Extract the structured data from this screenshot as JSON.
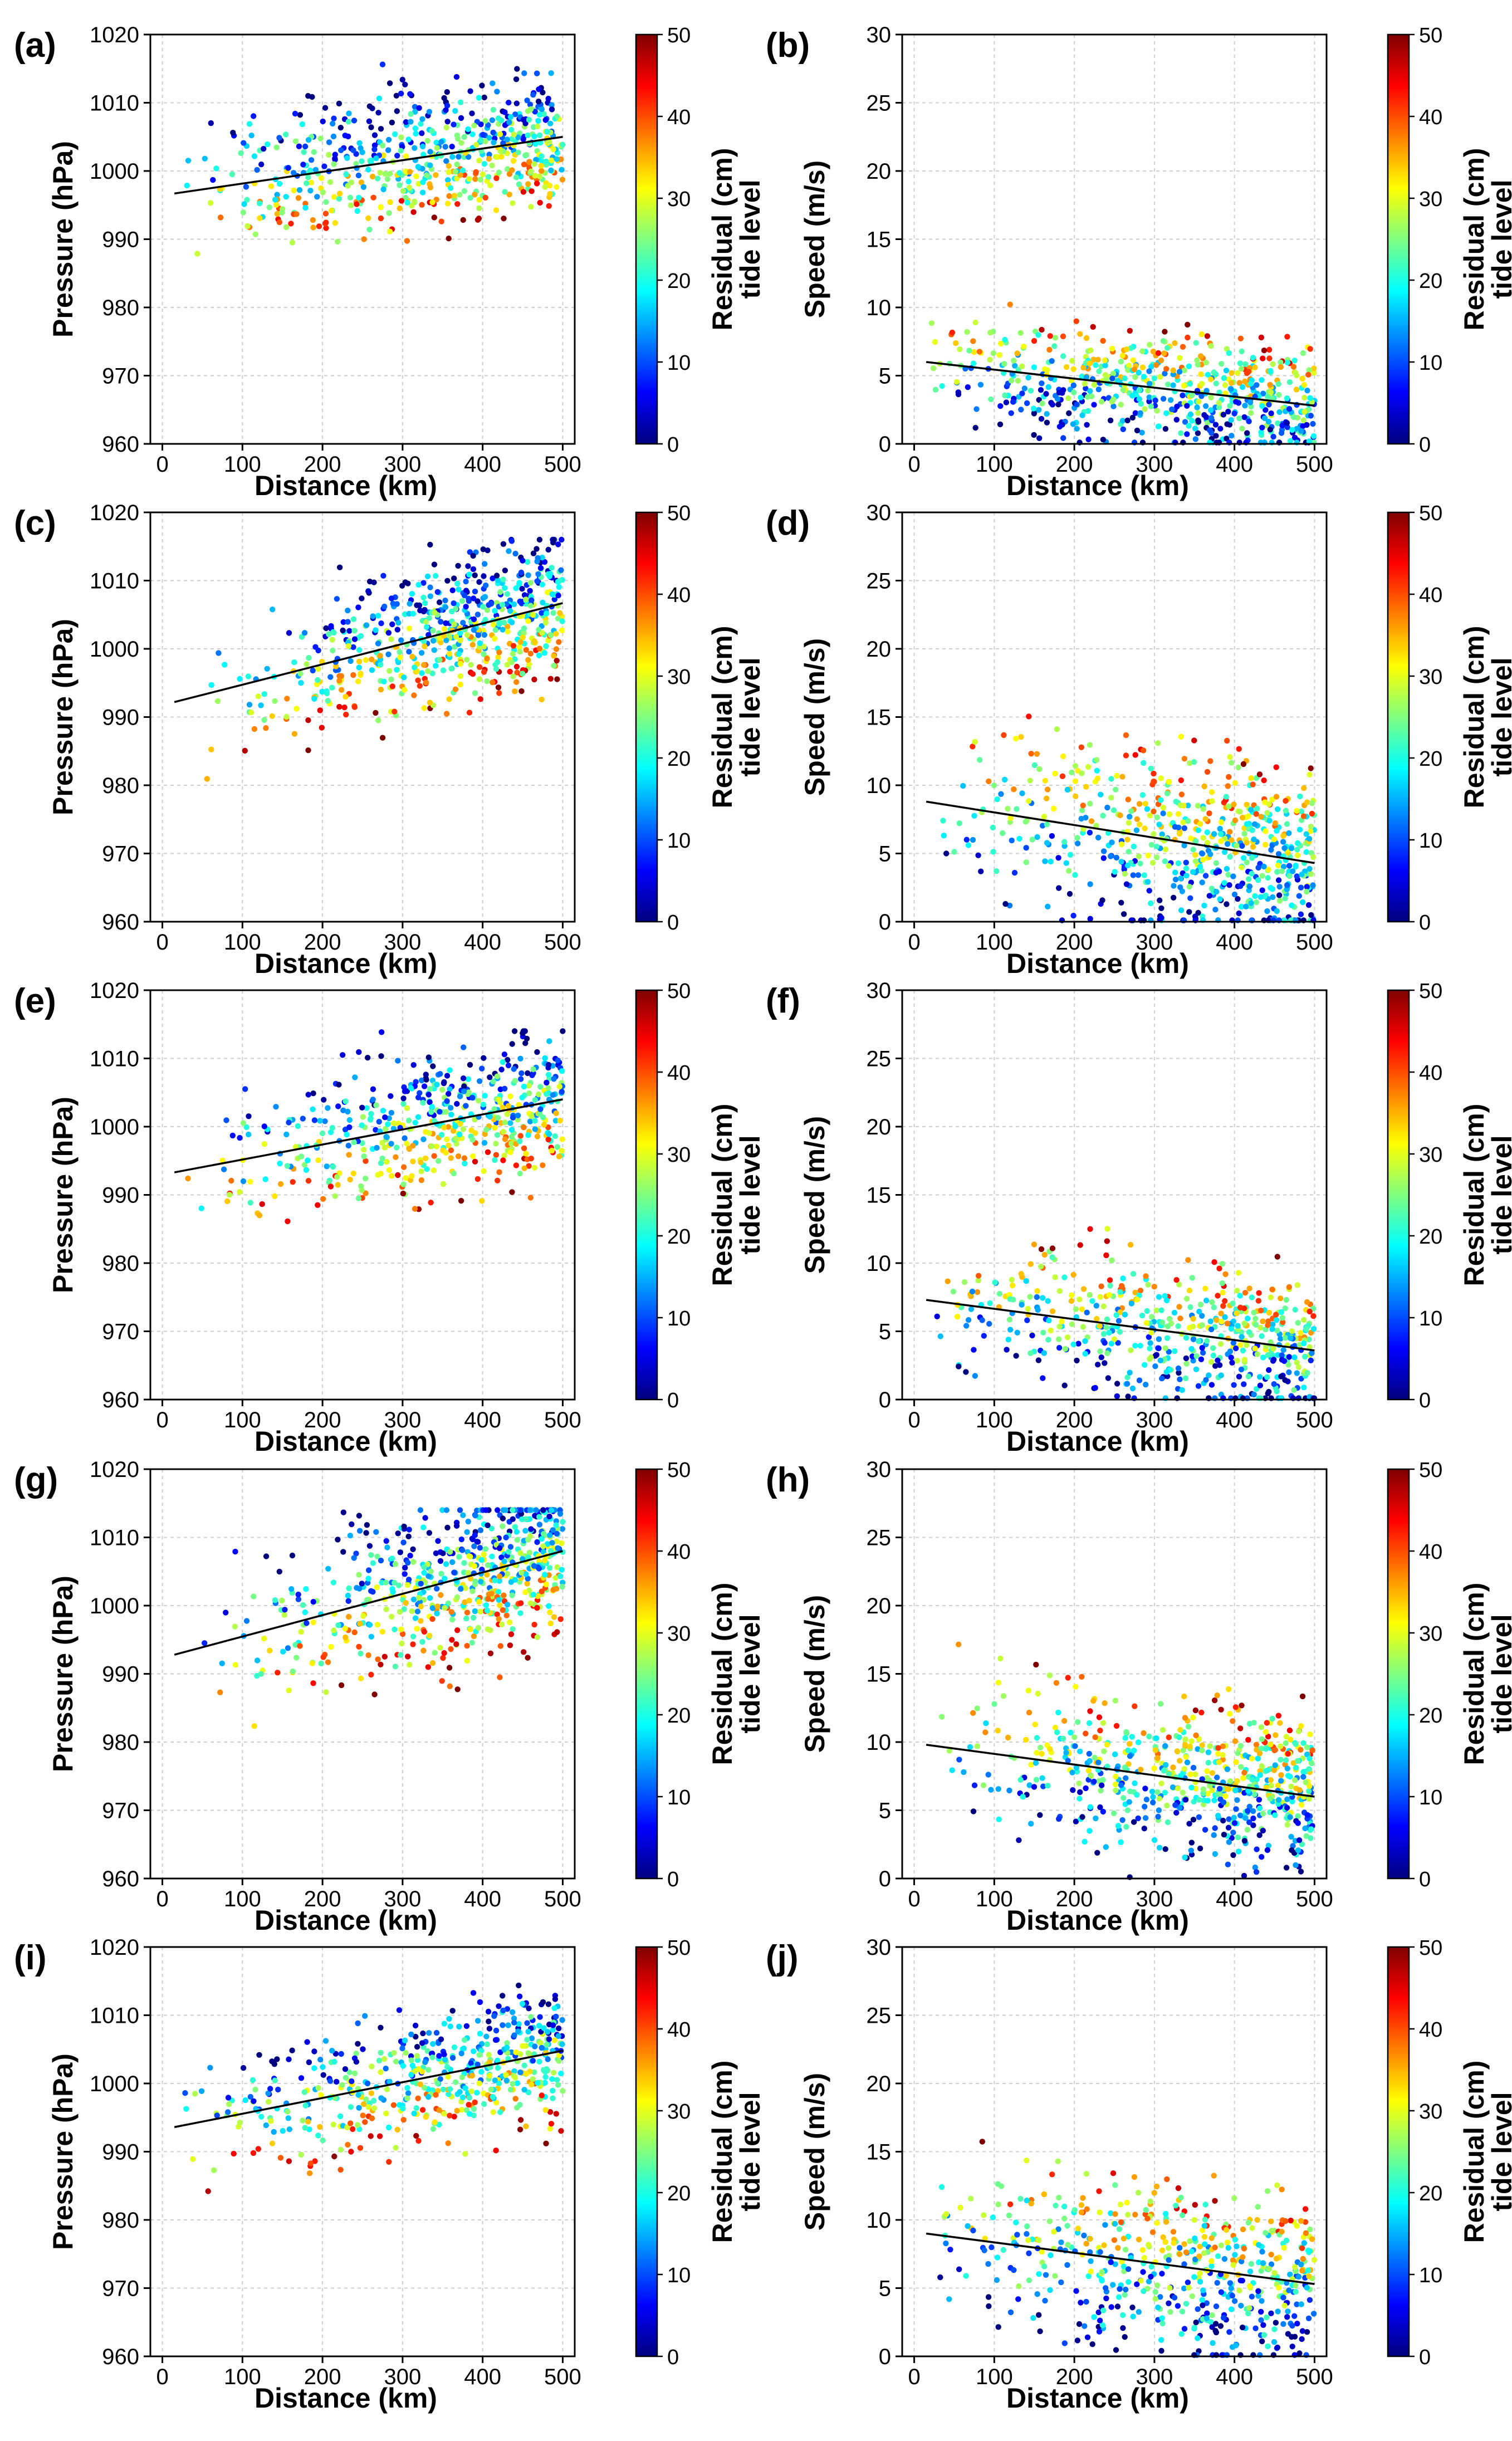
{
  "figure": {
    "colormap": [
      "#00007f",
      "#0000ff",
      "#007fff",
      "#00ffff",
      "#7fff7f",
      "#ffff00",
      "#ff7f00",
      "#ff0000",
      "#7f0000"
    ],
    "line_color": "#000000",
    "grid_color": "#cfcfcf"
  },
  "chart_data": [
    {
      "id": "a",
      "panel_label": "(a)",
      "type": "scatter",
      "xlabel": "Distance (km)",
      "ylabel": "Pressure (hPa)",
      "xlim": [
        -15,
        515
      ],
      "ylim": [
        960,
        1020
      ],
      "xticks": [
        0,
        100,
        200,
        300,
        400,
        500
      ],
      "yticks": [
        960,
        970,
        980,
        990,
        1000,
        1010,
        1020
      ],
      "colorbar": {
        "label": "Residual (cm)",
        "label2": "tide level",
        "range": [
          0,
          50
        ],
        "ticks": [
          0,
          10,
          20,
          30,
          40,
          50
        ]
      },
      "fit_line": {
        "x": [
          15,
          500
        ],
        "y": [
          996.7,
          1005.0
        ]
      },
      "scatter": {
        "n": 620,
        "seed": 11,
        "slope": 0.0171,
        "intercept": 996.4,
        "spread": 6,
        "xmin": 15,
        "xmax": 500,
        "skew": 0.55,
        "ymin": 981,
        "ymax": 1016,
        "curl": 4
      }
    },
    {
      "id": "b",
      "panel_label": "(b)",
      "type": "scatter",
      "xlabel": "Distance (km)",
      "ylabel": "Speed (m/s)",
      "xlim": [
        -15,
        515
      ],
      "ylim": [
        0,
        30
      ],
      "xticks": [
        0,
        100,
        200,
        300,
        400,
        500
      ],
      "yticks": [
        0,
        5,
        10,
        15,
        20,
        25,
        30
      ],
      "colorbar": {
        "label": "Residual (cm)",
        "label2": "tide level",
        "range": [
          0,
          50
        ],
        "ticks": [
          0,
          10,
          20,
          30,
          40,
          50
        ]
      },
      "fit_line": {
        "x": [
          15,
          500
        ],
        "y": [
          6.0,
          2.8
        ]
      },
      "scatter": {
        "n": 640,
        "seed": 12,
        "slope": -0.0066,
        "intercept": 6.1,
        "spread": 2.6,
        "xmin": 15,
        "xmax": 500,
        "skew": 0.6,
        "ymin": 0.1,
        "ymax": 15,
        "curl": 0
      }
    },
    {
      "id": "c",
      "panel_label": "(c)",
      "type": "scatter",
      "xlabel": "Distance (km)",
      "ylabel": "Pressure (hPa)",
      "xlim": [
        -15,
        515
      ],
      "ylim": [
        960,
        1020
      ],
      "xticks": [
        0,
        100,
        200,
        300,
        400,
        500
      ],
      "yticks": [
        960,
        970,
        980,
        990,
        1000,
        1010,
        1020
      ],
      "colorbar": {
        "label": "Residual (cm)",
        "label2": "tide level",
        "range": [
          0,
          50
        ],
        "ticks": [
          0,
          10,
          20,
          30,
          40,
          50
        ]
      },
      "fit_line": {
        "x": [
          15,
          500
        ],
        "y": [
          992.2,
          1006.7
        ]
      },
      "scatter": {
        "n": 640,
        "seed": 13,
        "slope": 0.0299,
        "intercept": 991.8,
        "spread": 6,
        "xmin": 15,
        "xmax": 500,
        "skew": 0.45,
        "ymin": 970,
        "ymax": 1016,
        "curl": 5
      }
    },
    {
      "id": "d",
      "panel_label": "(d)",
      "type": "scatter",
      "xlabel": "Distance (km)",
      "ylabel": "Speed (m/s)",
      "xlim": [
        -15,
        515
      ],
      "ylim": [
        0,
        30
      ],
      "xticks": [
        0,
        100,
        200,
        300,
        400,
        500
      ],
      "yticks": [
        0,
        5,
        10,
        15,
        20,
        25,
        30
      ],
      "colorbar": {
        "label": "Residual (cm)",
        "label2": "tide level",
        "range": [
          0,
          50
        ],
        "ticks": [
          0,
          10,
          20,
          30,
          40,
          50
        ]
      },
      "fit_line": {
        "x": [
          15,
          500
        ],
        "y": [
          8.8,
          4.3
        ]
      },
      "scatter": {
        "n": 640,
        "seed": 14,
        "slope": -0.0093,
        "intercept": 8.9,
        "spread": 4.2,
        "xmin": 15,
        "xmax": 500,
        "skew": 0.5,
        "ymin": 0.1,
        "ymax": 26.3,
        "curl": 0
      }
    },
    {
      "id": "e",
      "panel_label": "(e)",
      "type": "scatter",
      "xlabel": "Distance (km)",
      "ylabel": "Pressure (hPa)",
      "xlim": [
        -15,
        515
      ],
      "ylim": [
        960,
        1020
      ],
      "xticks": [
        0,
        100,
        200,
        300,
        400,
        500
      ],
      "yticks": [
        960,
        970,
        980,
        990,
        1000,
        1010,
        1020
      ],
      "colorbar": {
        "label": "Residual (cm)",
        "label2": "tide level",
        "range": [
          0,
          50
        ],
        "ticks": [
          0,
          10,
          20,
          30,
          40,
          50
        ]
      },
      "fit_line": {
        "x": [
          15,
          500
        ],
        "y": [
          993.3,
          1004.0
        ]
      },
      "scatter": {
        "n": 540,
        "seed": 15,
        "slope": 0.0221,
        "intercept": 993.0,
        "spread": 6,
        "xmin": 15,
        "xmax": 500,
        "skew": 0.5,
        "ymin": 973,
        "ymax": 1014,
        "curl": 4
      }
    },
    {
      "id": "f",
      "panel_label": "(f)",
      "type": "scatter",
      "xlabel": "Distance (km)",
      "ylabel": "Speed (m/s)",
      "xlim": [
        -15,
        515
      ],
      "ylim": [
        0,
        30
      ],
      "xticks": [
        0,
        100,
        200,
        300,
        400,
        500
      ],
      "yticks": [
        0,
        5,
        10,
        15,
        20,
        25,
        30
      ],
      "colorbar": {
        "label": "Residual (cm)",
        "label2": "tide level",
        "range": [
          0,
          50
        ],
        "ticks": [
          0,
          10,
          20,
          30,
          40,
          50
        ]
      },
      "fit_line": {
        "x": [
          15,
          500
        ],
        "y": [
          7.3,
          3.6
        ]
      },
      "scatter": {
        "n": 560,
        "seed": 16,
        "slope": -0.0076,
        "intercept": 7.4,
        "spread": 3.2,
        "xmin": 15,
        "xmax": 500,
        "skew": 0.55,
        "ymin": 0.1,
        "ymax": 19.8,
        "curl": 0
      }
    },
    {
      "id": "g",
      "panel_label": "(g)",
      "type": "scatter",
      "xlabel": "Distance (km)",
      "ylabel": "Pressure (hPa)",
      "xlim": [
        -15,
        515
      ],
      "ylim": [
        960,
        1020
      ],
      "xticks": [
        0,
        100,
        200,
        300,
        400,
        500
      ],
      "yticks": [
        960,
        970,
        980,
        990,
        1000,
        1010,
        1020
      ],
      "colorbar": {
        "label": "Residual (cm)",
        "label2": "tide level",
        "range": [
          0,
          50
        ],
        "ticks": [
          0,
          10,
          20,
          30,
          40,
          50
        ]
      },
      "fit_line": {
        "x": [
          15,
          500
        ],
        "y": [
          992.8,
          1008.0
        ]
      },
      "scatter": {
        "n": 640,
        "seed": 17,
        "slope": 0.0313,
        "intercept": 992.3,
        "spread": 7,
        "xmin": 15,
        "xmax": 500,
        "skew": 0.4,
        "ymin": 978.5,
        "ymax": 1014,
        "curl": 5
      }
    },
    {
      "id": "h",
      "panel_label": "(h)",
      "type": "scatter",
      "xlabel": "Distance (km)",
      "ylabel": "Speed (m/s)",
      "xlim": [
        -15,
        515
      ],
      "ylim": [
        0,
        30
      ],
      "xticks": [
        0,
        100,
        200,
        300,
        400,
        500
      ],
      "yticks": [
        0,
        5,
        10,
        15,
        20,
        25,
        30
      ],
      "colorbar": {
        "label": "Residual (cm)",
        "label2": "tide level",
        "range": [
          0,
          50
        ],
        "ticks": [
          0,
          10,
          20,
          30,
          40,
          50
        ]
      },
      "fit_line": {
        "x": [
          15,
          500
        ],
        "y": [
          9.8,
          6.0
        ]
      },
      "scatter": {
        "n": 640,
        "seed": 18,
        "slope": -0.0078,
        "intercept": 9.9,
        "spread": 3.6,
        "xmin": 15,
        "xmax": 500,
        "skew": 0.45,
        "ymin": 0.1,
        "ymax": 17.2,
        "curl": 0
      }
    },
    {
      "id": "i",
      "panel_label": "(i)",
      "type": "scatter",
      "xlabel": "Distance (km)",
      "ylabel": "Pressure (hPa)",
      "xlim": [
        -15,
        515
      ],
      "ylim": [
        960,
        1020
      ],
      "xticks": [
        0,
        100,
        200,
        300,
        400,
        500
      ],
      "yticks": [
        960,
        970,
        980,
        990,
        1000,
        1010,
        1020
      ],
      "colorbar": {
        "label": "Residual (cm)",
        "label2": "tide level",
        "range": [
          0,
          50
        ],
        "ticks": [
          0,
          10,
          20,
          30,
          40,
          50
        ]
      },
      "fit_line": {
        "x": [
          15,
          500
        ],
        "y": [
          993.6,
          1004.8
        ]
      },
      "scatter": {
        "n": 560,
        "seed": 19,
        "slope": 0.0231,
        "intercept": 993.3,
        "spread": 6,
        "xmin": 15,
        "xmax": 500,
        "skew": 0.55,
        "ymin": 978,
        "ymax": 1015,
        "curl": 4
      }
    },
    {
      "id": "j",
      "panel_label": "(j)",
      "type": "scatter",
      "xlabel": "Distance (km)",
      "ylabel": "Speed (m/s)",
      "xlim": [
        -15,
        515
      ],
      "ylim": [
        0,
        30
      ],
      "xticks": [
        0,
        100,
        200,
        300,
        400,
        500
      ],
      "yticks": [
        0,
        5,
        10,
        15,
        20,
        25,
        30
      ],
      "colorbar": {
        "label": "Residual (cm)",
        "label2": "tide level",
        "range": [
          0,
          50
        ],
        "ticks": [
          0,
          10,
          20,
          30,
          40,
          50
        ]
      },
      "fit_line": {
        "x": [
          15,
          500
        ],
        "y": [
          9.0,
          5.3
        ]
      },
      "scatter": {
        "n": 560,
        "seed": 20,
        "slope": -0.0076,
        "intercept": 9.1,
        "spread": 3.8,
        "xmin": 15,
        "xmax": 500,
        "skew": 0.55,
        "ymin": 0.1,
        "ymax": 20.0,
        "curl": 0
      }
    }
  ]
}
